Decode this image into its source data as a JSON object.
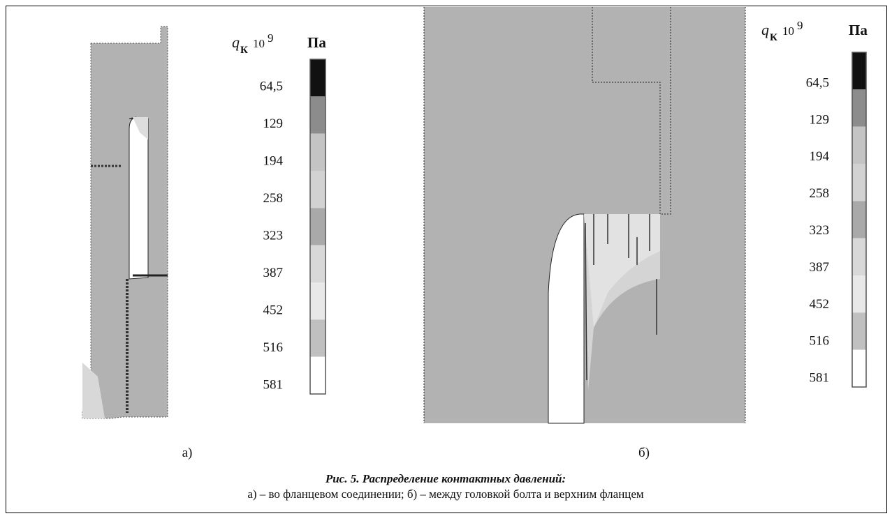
{
  "figure": {
    "panels": [
      {
        "label": "а)",
        "legend": {
          "symbol": "q",
          "subscript": "К",
          "multiplier_base": "10",
          "multiplier_exponent": "9",
          "unit": "Па",
          "levels": [
            "64,5",
            "129",
            "194",
            "258",
            "323",
            "387",
            "452",
            "516",
            "581"
          ]
        }
      },
      {
        "label": "б)",
        "legend": {
          "symbol": "q",
          "subscript": "К",
          "multiplier_base": "10",
          "multiplier_exponent": "9",
          "unit": "Па",
          "levels": [
            "64,5",
            "129",
            "194",
            "258",
            "323",
            "387",
            "452",
            "516",
            "581"
          ]
        }
      }
    ],
    "caption": {
      "title": "Рис. 5. Распределение контактных давлений:",
      "description": "а) – во фланцевом соединении; б) – между головкой болта и верхним фланцем"
    }
  }
}
